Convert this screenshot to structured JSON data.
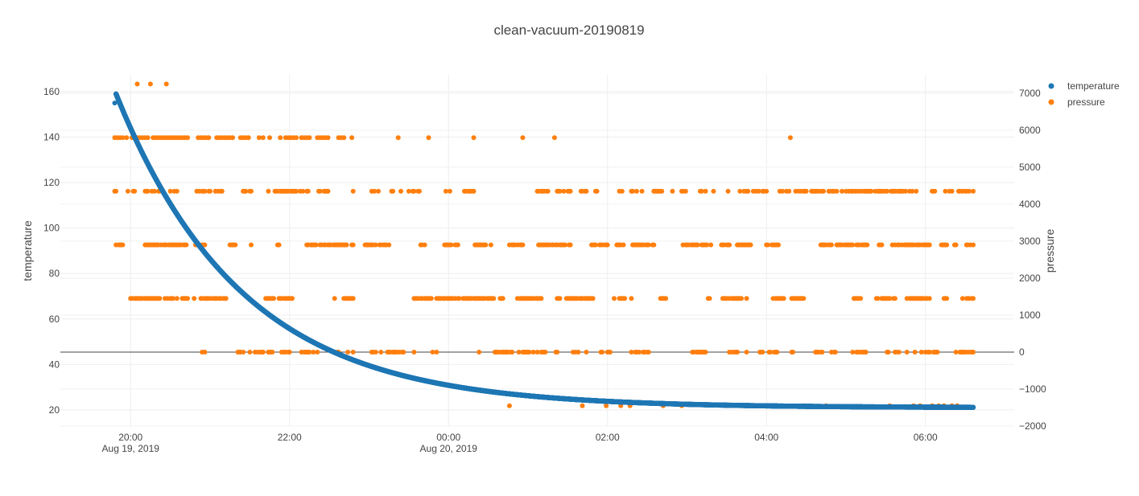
{
  "chart_data": {
    "type": "scatter",
    "title": "clean-vacuum-20190819",
    "x_axis": {
      "type": "date",
      "range": [
        "2019-08-19T19:07:00",
        "2019-08-20T07:07:00"
      ],
      "ticks": [
        {
          "value": "2019-08-19T20:00",
          "label": "20:00",
          "sublabel": "Aug 19, 2019"
        },
        {
          "value": "2019-08-19T22:00",
          "label": "22:00",
          "sublabel": ""
        },
        {
          "value": "2019-08-20T00:00",
          "label": "00:00",
          "sublabel": "Aug 20, 2019"
        },
        {
          "value": "2019-08-20T02:00",
          "label": "02:00",
          "sublabel": ""
        },
        {
          "value": "2019-08-20T04:00",
          "label": "04:00",
          "sublabel": ""
        },
        {
          "value": "2019-08-20T06:00",
          "label": "06:00",
          "sublabel": ""
        }
      ],
      "grid": true
    },
    "y_axis": {
      "title": "temperature",
      "range": [
        12.9,
        167.4
      ],
      "ticks": [
        20,
        40,
        60,
        80,
        100,
        120,
        140,
        160
      ],
      "grid": true
    },
    "y2_axis": {
      "title": "pressure",
      "range": [
        -2000,
        7500
      ],
      "ticks": [
        -2000,
        -1000,
        0,
        1000,
        2000,
        3000,
        4000,
        5000,
        6000,
        7000
      ],
      "grid": true,
      "zeroline": true
    },
    "legend": {
      "position": "top-right"
    },
    "series": [
      {
        "name": "temperature",
        "color": "#1f77b4",
        "axis": "y",
        "model": {
          "start": "2019-08-19T19:49",
          "end": "2019-08-20T06:36",
          "t_start": 159,
          "t_end": 21,
          "tau_minutes": 95
        },
        "x": [
          "2019-08-19T19:48",
          "2019-08-19T19:50",
          "2019-08-19T20:00",
          "2019-08-19T20:30",
          "2019-08-19T21:00",
          "2019-08-19T21:30",
          "2019-08-19T22:00",
          "2019-08-19T22:30",
          "2019-08-19T23:00",
          "2019-08-19T23:30",
          "2019-08-20T00:00",
          "2019-08-20T01:00",
          "2019-08-20T02:00",
          "2019-08-20T03:00",
          "2019-08-20T04:00",
          "2019-08-20T05:00",
          "2019-08-20T06:00",
          "2019-08-20T06:36"
        ],
        "y": [
          155,
          159,
          142,
          110,
          85,
          68,
          55,
          46,
          39,
          34,
          30,
          26,
          24,
          23,
          22.3,
          22,
          21.5,
          21
        ]
      },
      {
        "name": "pressure",
        "color": "#ff7f0e",
        "axis": "y2",
        "levels": [
          {
            "value": 7250,
            "x": [
              "2019-08-19T20:05",
              "2019-08-19T20:15",
              "2019-08-19T20:27"
            ]
          },
          {
            "value": 5800,
            "x": [
              "2019-08-19T19:48",
              "2019-08-19T19:50",
              "2019-08-19T19:52",
              "2019-08-19T19:54",
              "2019-08-19T19:57",
              "2019-08-19T20:01",
              "2019-08-19T20:03",
              "2019-08-19T20:05",
              "2019-08-19T20:07",
              "2019-08-19T20:09",
              "2019-08-19T20:11",
              "2019-08-19T20:13",
              "2019-08-19T20:17",
              "2019-08-19T20:19",
              "2019-08-19T20:21",
              "2019-08-19T20:23",
              "2019-08-19T20:25",
              "2019-08-19T20:27",
              "2019-08-19T20:29",
              "2019-08-19T20:31",
              "2019-08-19T20:33",
              "2019-08-19T20:35",
              "2019-08-19T20:37",
              "2019-08-19T20:39",
              "2019-08-19T20:41",
              "2019-08-19T20:43",
              "2019-08-19T20:51",
              "2019-08-19T20:53",
              "2019-08-19T20:55",
              "2019-08-19T20:57",
              "2019-08-19T20:59",
              "2019-08-19T21:05",
              "2019-08-19T21:07",
              "2019-08-19T21:09",
              "2019-08-19T21:11",
              "2019-08-19T21:13",
              "2019-08-19T21:15",
              "2019-08-19T21:17",
              "2019-08-19T21:23",
              "2019-08-19T21:25",
              "2019-08-19T21:27",
              "2019-08-19T21:29",
              "2019-08-19T21:37",
              "2019-08-19T21:40",
              "2019-08-19T21:45",
              "2019-08-19T21:53",
              "2019-08-19T21:57",
              "2019-08-19T21:59",
              "2019-08-19T22:01",
              "2019-08-19T22:03",
              "2019-08-19T22:05",
              "2019-08-19T22:09",
              "2019-08-19T22:11",
              "2019-08-19T22:13",
              "2019-08-19T22:15",
              "2019-08-19T22:21",
              "2019-08-19T22:23",
              "2019-08-19T22:25",
              "2019-08-19T22:27",
              "2019-08-19T22:29",
              "2019-08-19T22:37",
              "2019-08-19T22:39",
              "2019-08-19T22:41",
              "2019-08-19T22:47",
              "2019-08-19T23:22",
              "2019-08-19T23:45",
              "2019-08-20T00:19",
              "2019-08-20T00:56",
              "2019-08-20T01:20",
              "2019-08-20T04:18"
            ]
          },
          {
            "value": 4350,
            "x_start": "2019-08-19T19:48",
            "x_end": "2019-08-20T06:36",
            "density": 0.5
          },
          {
            "value": 2900,
            "x_start": "2019-08-19T19:49",
            "x_end": "2019-08-20T06:36",
            "density": 0.78
          },
          {
            "value": 1450,
            "x_start": "2019-08-19T20:00",
            "x_end": "2019-08-20T06:36",
            "density": 0.86
          },
          {
            "value": 0,
            "x_start": "2019-08-19T20:54",
            "x_end": "2019-08-20T06:36",
            "density": 0.52
          },
          {
            "value": -1450,
            "x": [
              "2019-08-20T00:46",
              "2019-08-20T01:41",
              "2019-08-20T01:59",
              "2019-08-20T02:10",
              "2019-08-20T02:17",
              "2019-08-20T02:42",
              "2019-08-20T02:56",
              "2019-08-20T03:44",
              "2019-08-20T03:48",
              "2019-08-20T04:28",
              "2019-08-20T04:45",
              "2019-08-20T05:33",
              "2019-08-20T05:51",
              "2019-08-20T05:56",
              "2019-08-20T06:05",
              "2019-08-20T06:10",
              "2019-08-20T06:14",
              "2019-08-20T06:20",
              "2019-08-20T06:24"
            ]
          }
        ]
      }
    ]
  }
}
